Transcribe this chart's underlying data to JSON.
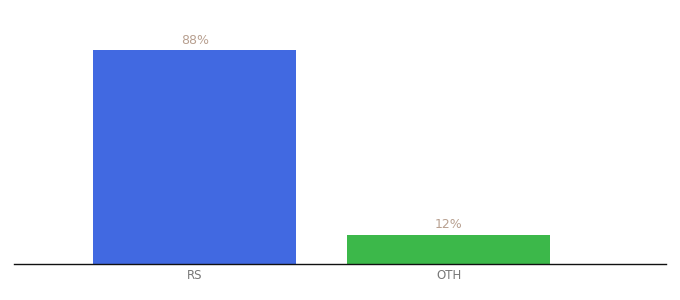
{
  "categories": [
    "RS",
    "OTH"
  ],
  "values": [
    88,
    12
  ],
  "bar_colors": [
    "#4169e1",
    "#3cb84a"
  ],
  "label_texts": [
    "88%",
    "12%"
  ],
  "label_color": "#b8a090",
  "xlabel": "",
  "ylabel": "",
  "ylim": [
    0,
    100
  ],
  "background_color": "#ffffff",
  "bar_width": 0.28,
  "label_fontsize": 9,
  "tick_fontsize": 8.5,
  "tick_color": "#777777",
  "axis_line_color": "#111111",
  "x_positions": [
    0.3,
    0.65
  ]
}
